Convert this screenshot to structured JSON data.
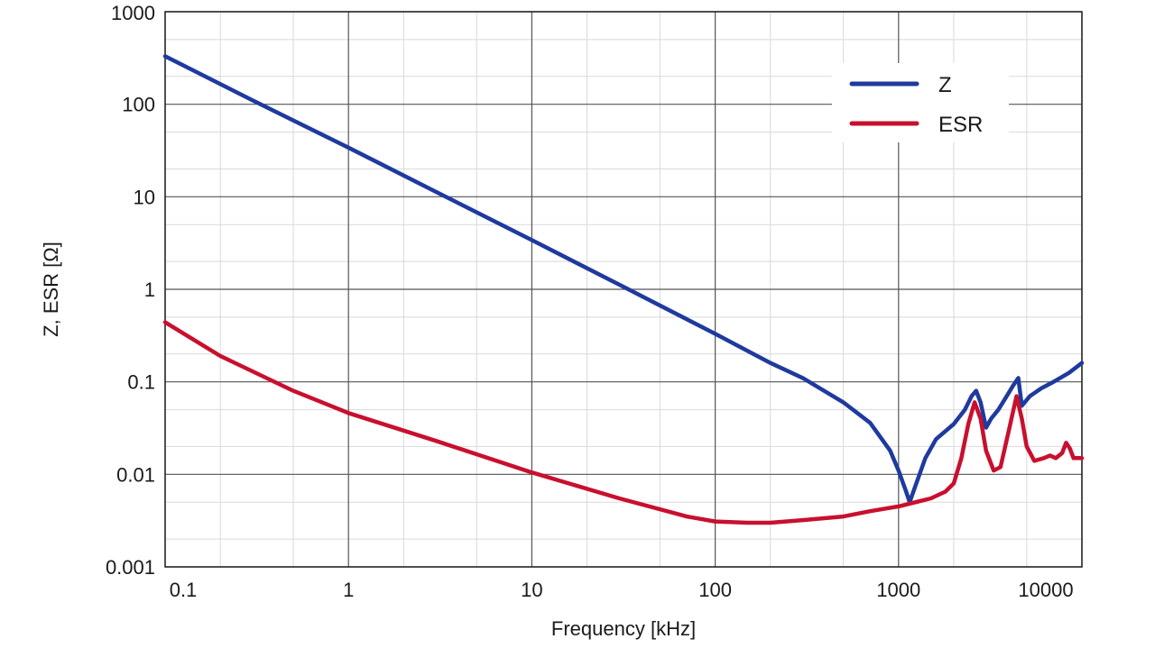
{
  "chart_data": {
    "type": "line",
    "title": "",
    "xlabel": "Frequency [kHz]",
    "ylabel": "Z, ESR [Ω]",
    "x_scale": "log",
    "y_scale": "log",
    "xlim": [
      0.1,
      10000
    ],
    "ylim": [
      0.001,
      1000
    ],
    "x_ticks": [
      {
        "value": 0.1,
        "label": "0.1"
      },
      {
        "value": 1,
        "label": "1"
      },
      {
        "value": 10,
        "label": "10"
      },
      {
        "value": 100,
        "label": "100"
      },
      {
        "value": 1000,
        "label": "1000"
      },
      {
        "value": 10000,
        "label": "10000"
      }
    ],
    "y_ticks": [
      {
        "value": 1000,
        "label": "1000"
      },
      {
        "value": 100,
        "label": "100"
      },
      {
        "value": 10,
        "label": "10"
      },
      {
        "value": 1,
        "label": "1"
      },
      {
        "value": 0.1,
        "label": "0.1"
      },
      {
        "value": 0.01,
        "label": "0.01"
      },
      {
        "value": 0.001,
        "label": "0.001"
      }
    ],
    "grid": true,
    "legend_position": "top-right",
    "series": [
      {
        "name": "Z",
        "color": "#1f3a9e",
        "points": [
          [
            0.1,
            330
          ],
          [
            0.3,
            110
          ],
          [
            1,
            34
          ],
          [
            3,
            11.3
          ],
          [
            10,
            3.4
          ],
          [
            30,
            1.12
          ],
          [
            100,
            0.33
          ],
          [
            200,
            0.16
          ],
          [
            300,
            0.11
          ],
          [
            500,
            0.06
          ],
          [
            700,
            0.036
          ],
          [
            900,
            0.018
          ],
          [
            1000,
            0.011
          ],
          [
            1100,
            0.0065
          ],
          [
            1150,
            0.005
          ],
          [
            1250,
            0.008
          ],
          [
            1400,
            0.015
          ],
          [
            1600,
            0.024
          ],
          [
            2000,
            0.035
          ],
          [
            2300,
            0.05
          ],
          [
            2500,
            0.07
          ],
          [
            2650,
            0.08
          ],
          [
            2800,
            0.06
          ],
          [
            3000,
            0.032
          ],
          [
            3200,
            0.04
          ],
          [
            3500,
            0.05
          ],
          [
            3800,
            0.065
          ],
          [
            4200,
            0.09
          ],
          [
            4500,
            0.11
          ],
          [
            4700,
            0.055
          ],
          [
            5200,
            0.07
          ],
          [
            6000,
            0.085
          ],
          [
            7000,
            0.1
          ],
          [
            8500,
            0.125
          ],
          [
            10000,
            0.16
          ]
        ]
      },
      {
        "name": "ESR",
        "color": "#c8102e",
        "points": [
          [
            0.1,
            0.44
          ],
          [
            0.2,
            0.19
          ],
          [
            0.5,
            0.08
          ],
          [
            1,
            0.046
          ],
          [
            3,
            0.023
          ],
          [
            10,
            0.0105
          ],
          [
            30,
            0.0055
          ],
          [
            70,
            0.0035
          ],
          [
            100,
            0.0031
          ],
          [
            150,
            0.003
          ],
          [
            200,
            0.003
          ],
          [
            300,
            0.0032
          ],
          [
            500,
            0.0035
          ],
          [
            700,
            0.004
          ],
          [
            1000,
            0.0045
          ],
          [
            1500,
            0.0055
          ],
          [
            1800,
            0.0065
          ],
          [
            2000,
            0.008
          ],
          [
            2200,
            0.015
          ],
          [
            2400,
            0.035
          ],
          [
            2600,
            0.06
          ],
          [
            2800,
            0.04
          ],
          [
            3000,
            0.018
          ],
          [
            3300,
            0.011
          ],
          [
            3600,
            0.012
          ],
          [
            4000,
            0.03
          ],
          [
            4400,
            0.07
          ],
          [
            4700,
            0.04
          ],
          [
            5000,
            0.02
          ],
          [
            5500,
            0.014
          ],
          [
            6200,
            0.015
          ],
          [
            6700,
            0.016
          ],
          [
            7200,
            0.015
          ],
          [
            7800,
            0.017
          ],
          [
            8200,
            0.022
          ],
          [
            8600,
            0.019
          ],
          [
            9000,
            0.015
          ],
          [
            10000,
            0.015
          ]
        ]
      }
    ]
  }
}
